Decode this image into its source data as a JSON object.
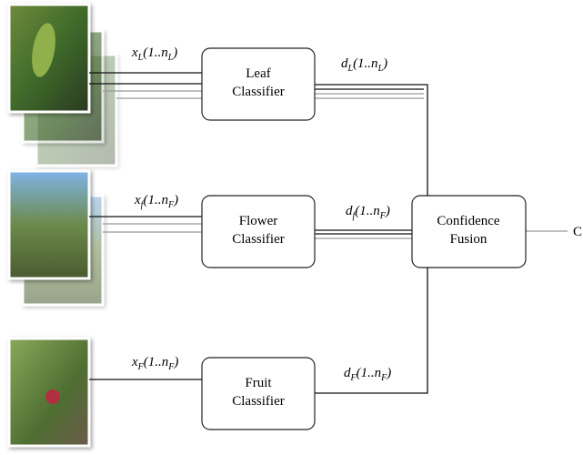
{
  "nodes": [
    {
      "lines": [
        "Leaf",
        "Classifier"
      ]
    },
    {
      "lines": [
        "Flower",
        "Classifier"
      ]
    },
    {
      "lines": [
        "Fruit",
        "Classifier"
      ]
    },
    {
      "lines": [
        "Confidence",
        "Fusion"
      ]
    }
  ],
  "inputs": [
    {
      "base": "x",
      "sub": "L",
      "mid": "(1..n",
      "sub2": "L",
      "end": ")"
    },
    {
      "base": "x",
      "sub": "f",
      "mid": "(1..n",
      "sub2": "F",
      "end": ")"
    },
    {
      "base": "x",
      "sub": "F",
      "mid": "(1..n",
      "sub2": "F",
      "end": ")"
    }
  ],
  "outputs": [
    {
      "base": "d",
      "sub": "L",
      "mid": "(1..n",
      "sub2": "L",
      "end": ")"
    },
    {
      "base": "d",
      "sub": "f",
      "mid": "(1..n",
      "sub2": "F",
      "end": ")"
    },
    {
      "base": "d",
      "sub": "F",
      "mid": "(1..n",
      "sub2": "F",
      "end": ")"
    }
  ],
  "result": "C"
}
